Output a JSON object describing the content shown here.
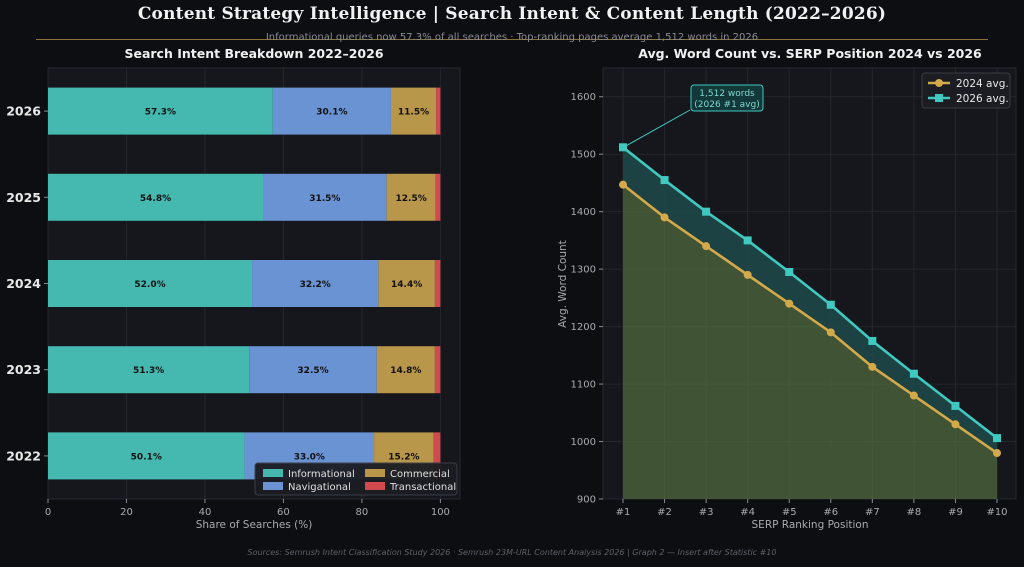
{
  "header": {
    "title": "Content Strategy Intelligence  |  Search Intent & Content Length  (2022–2026)",
    "subtitle": "Informational queries now 57.3% of all searches  ·  Top-ranking pages average 1,512 words in 2026"
  },
  "footer": "Sources: Semrush Intent Classification Study 2026 · Semrush 23M-URL Content Analysis 2026  |  Graph 2 — Insert after Statistic #10",
  "colors": {
    "informational": "#45b8b0",
    "navigational": "#6a93d4",
    "commercial": "#b8964a",
    "transactional": "#d04a4f",
    "line_2024": "#d4a94a",
    "line_2026": "#40c9c0"
  },
  "chart_data": [
    {
      "type": "bar",
      "orientation": "horizontal",
      "stacked": true,
      "title": "Search Intent Breakdown  2022–2026",
      "xlabel": "Share of Searches (%)",
      "ylabel": "",
      "xlim": [
        0,
        105
      ],
      "xticks": [
        "0",
        "20",
        "40",
        "60",
        "80",
        "100"
      ],
      "categories": [
        "2026",
        "2025",
        "2024",
        "2023",
        "2022"
      ],
      "series": [
        {
          "name": "Informational",
          "values": [
            57.3,
            54.8,
            52.0,
            51.3,
            50.1
          ],
          "labels": [
            "57.3%",
            "54.8%",
            "52.0%",
            "51.3%",
            "50.1%"
          ]
        },
        {
          "name": "Navigational",
          "values": [
            30.1,
            31.5,
            32.2,
            32.5,
            33.0
          ],
          "labels": [
            "30.1%",
            "31.5%",
            "32.2%",
            "32.5%",
            "33.0%"
          ]
        },
        {
          "name": "Commercial",
          "values": [
            11.5,
            12.5,
            14.4,
            14.8,
            15.2
          ],
          "labels": [
            "11.5%",
            "12.5%",
            "14.4%",
            "14.8%",
            "15.2%"
          ]
        },
        {
          "name": "Transactional",
          "values": [
            1.1,
            1.2,
            1.4,
            1.4,
            1.7
          ]
        }
      ],
      "legend": "lower-right",
      "grid": true
    },
    {
      "type": "line",
      "title": "Avg. Word Count vs. SERP Position  2024 vs 2026",
      "xlabel": "SERP Ranking Position",
      "ylabel": "Avg. Word Count",
      "x": [
        "#1",
        "#2",
        "#3",
        "#4",
        "#5",
        "#6",
        "#7",
        "#8",
        "#9",
        "#10"
      ],
      "ylim": [
        900,
        1650
      ],
      "yticks": [
        "900",
        "1000",
        "1100",
        "1200",
        "1300",
        "1400",
        "1500",
        "1600"
      ],
      "series": [
        {
          "name": "2024 avg.",
          "values": [
            1447,
            1390,
            1340,
            1290,
            1240,
            1190,
            1130,
            1080,
            1030,
            980
          ]
        },
        {
          "name": "2026 avg.",
          "values": [
            1512,
            1455,
            1400,
            1350,
            1295,
            1238,
            1175,
            1118,
            1062,
            1006
          ]
        }
      ],
      "annotation": {
        "text": [
          "1,512 words",
          "(2026 #1 avg)"
        ],
        "x": "#1",
        "y": 1512
      },
      "legend": "top-right",
      "grid": true
    }
  ]
}
